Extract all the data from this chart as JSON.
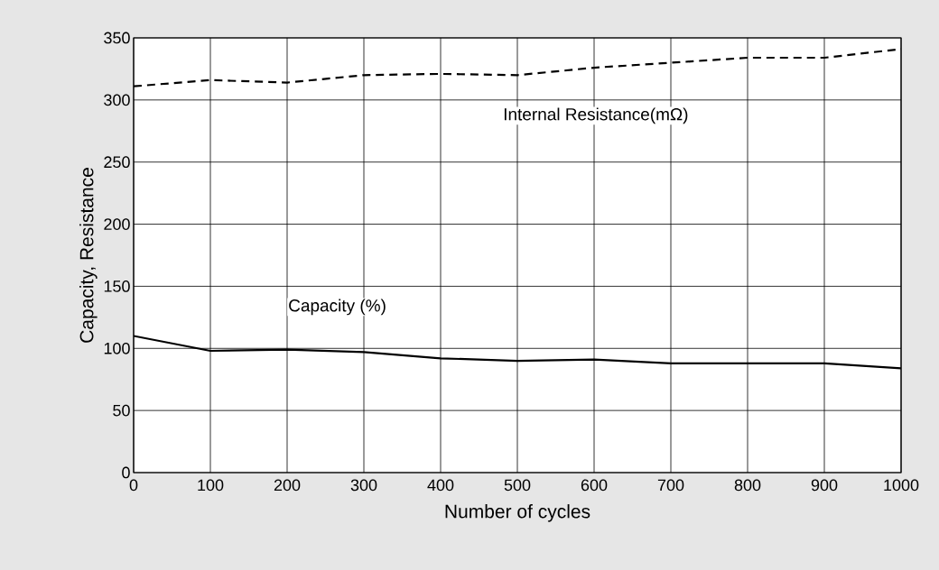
{
  "chart_data": {
    "type": "line",
    "xlabel": "Number of cycles",
    "ylabel": "Capacity, Resistance",
    "x": [
      0,
      100,
      200,
      300,
      400,
      500,
      600,
      700,
      800,
      900,
      1000
    ],
    "series": [
      {
        "name": "Internal Resistance(mΩ)",
        "color": "#000000",
        "line_style": "dashed",
        "values": [
          311,
          316,
          314,
          320,
          321,
          320,
          326,
          330,
          334,
          334,
          341
        ]
      },
      {
        "name": "Capacity (%)",
        "color": "#000000",
        "line_style": "solid",
        "values": [
          110,
          98,
          99,
          97,
          92,
          90,
          91,
          88,
          88,
          88,
          84
        ]
      }
    ],
    "xlim": [
      0,
      1000
    ],
    "xticks": [
      0,
      100,
      200,
      300,
      400,
      500,
      600,
      700,
      800,
      900,
      1000
    ],
    "ylim": [
      0,
      350
    ],
    "yticks": [
      0,
      50,
      100,
      150,
      200,
      250,
      300,
      350
    ],
    "grid": true,
    "legend": false,
    "marker": "none"
  }
}
